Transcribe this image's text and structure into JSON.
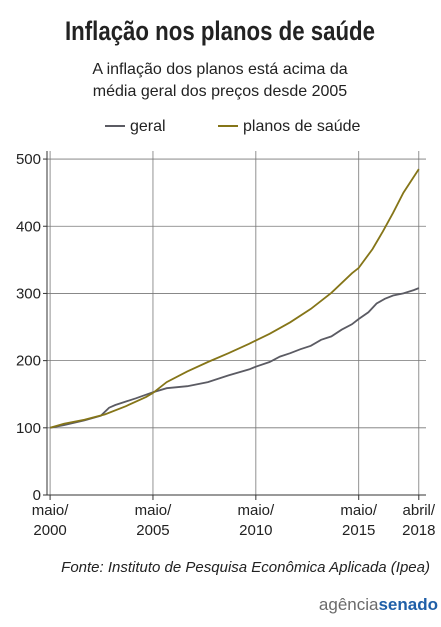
{
  "chart_data": {
    "type": "line",
    "title": "Inflação nos planos de saúde",
    "subtitle": [
      "A inflação dos planos está acima da",
      "média geral dos preços desde 2005"
    ],
    "source": "Fonte: Instituto de Pesquisa Econômica Aplicada (Ipea)",
    "logo": [
      "agência",
      "senado"
    ],
    "series": [
      {
        "name": "geral",
        "color": "#5b5b63",
        "x": [
          2000.33,
          2001,
          2002,
          2002.8,
          2003.2,
          2003.5,
          2004,
          2004.5,
          2005.33,
          2006,
          2007,
          2008,
          2009,
          2010,
          2010.33,
          2011,
          2011.5,
          2012,
          2012.5,
          2013,
          2013.5,
          2014,
          2014.5,
          2015,
          2015.33,
          2015.8,
          2016.2,
          2016.6,
          2017,
          2017.5,
          2018,
          2018.25
        ],
        "values": [
          100,
          104,
          111,
          118,
          130,
          134,
          139,
          144,
          153,
          159,
          162,
          168,
          178,
          187,
          191,
          198,
          206,
          211,
          217,
          222,
          231,
          236,
          246,
          254,
          262,
          272,
          285,
          292,
          297,
          300,
          305,
          308
        ]
      },
      {
        "name": "planos de saúde",
        "color": "#857518",
        "x": [
          2000.33,
          2001,
          2002,
          2003,
          2004,
          2005,
          2005.33,
          2006,
          2007,
          2008,
          2009,
          2010,
          2011,
          2012,
          2013,
          2014,
          2015,
          2015.33,
          2016,
          2016.5,
          2017,
          2017.5,
          2018.25
        ],
        "values": [
          100,
          106,
          112,
          120,
          132,
          146,
          152,
          168,
          184,
          198,
          211,
          225,
          240,
          257,
          277,
          301,
          330,
          338,
          366,
          392,
          420,
          450,
          485
        ]
      }
    ],
    "xlim": [
      2000.18,
      2018.6
    ],
    "xticks": [
      {
        "value": 2000.33,
        "label": "maio/2000"
      },
      {
        "value": 2005.33,
        "label": "maio/2005"
      },
      {
        "value": 2010.33,
        "label": "maio/2010"
      },
      {
        "value": 2015.33,
        "label": "maio/2015"
      },
      {
        "value": 2018.25,
        "label": "abril/2018"
      }
    ],
    "ylim": [
      0,
      512
    ],
    "yticks": [
      0,
      100,
      200,
      300,
      400,
      500
    ],
    "grid": true
  }
}
